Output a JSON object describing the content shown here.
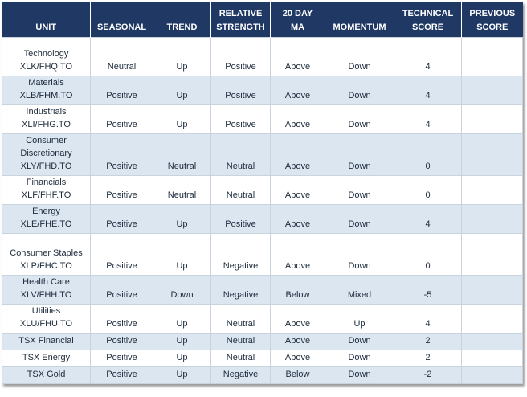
{
  "table": {
    "headers": [
      [
        "UNIT"
      ],
      [
        "SEASONAL"
      ],
      [
        "TREND"
      ],
      [
        "RELATIVE",
        "STRENGTH"
      ],
      [
        "20 DAY",
        "MA"
      ],
      [
        "MOMENTUM"
      ],
      [
        "TECHNICAL",
        "SCORE"
      ],
      [
        "PREVIOUS",
        "SCORE"
      ]
    ],
    "rows": [
      {
        "unit": [
          "Technology",
          "XLK/FHQ.TO"
        ],
        "seasonal": "Neutral",
        "trend": "Up",
        "relative_strength": "Positive",
        "ma_20_day": "Above",
        "momentum": "Down",
        "technical_score": 4
      },
      {
        "unit": [
          "Materials",
          "XLB/FHM.TO"
        ],
        "seasonal": "Positive",
        "trend": "Up",
        "relative_strength": "Positive",
        "ma_20_day": "Above",
        "momentum": "Down",
        "technical_score": 4
      },
      {
        "unit": [
          "Industrials",
          "XLI/FHG.TO"
        ],
        "seasonal": "Positive",
        "trend": "Up",
        "relative_strength": "Positive",
        "ma_20_day": "Above",
        "momentum": "Down",
        "technical_score": 4
      },
      {
        "unit": [
          "Consumer",
          "Discretionary",
          "XLY/FHD.TO"
        ],
        "seasonal": "Positive",
        "trend": "Neutral",
        "relative_strength": "Neutral",
        "ma_20_day": "Above",
        "momentum": "Down",
        "technical_score": 0
      },
      {
        "unit": [
          "Financials",
          "XLF/FHF.TO"
        ],
        "seasonal": "Positive",
        "trend": "Neutral",
        "relative_strength": "Neutral",
        "ma_20_day": "Above",
        "momentum": "Down",
        "technical_score": 0
      },
      {
        "unit": [
          "Energy",
          "XLE/FHE.TO"
        ],
        "seasonal": "Positive",
        "trend": "Up",
        "relative_strength": "Positive",
        "ma_20_day": "Above",
        "momentum": "Down",
        "technical_score": 4
      },
      {
        "unit": [
          "Consumer Staples",
          "XLP/FHC.TO"
        ],
        "seasonal": "Positive",
        "trend": "Up",
        "relative_strength": "Negative",
        "ma_20_day": "Above",
        "momentum": "Down",
        "technical_score": 0
      },
      {
        "unit": [
          "Health Care",
          "XLV/FHH.TO"
        ],
        "seasonal": "Positive",
        "trend": "Down",
        "relative_strength": "Negative",
        "ma_20_day": "Below",
        "momentum": "Mixed",
        "technical_score": -5
      },
      {
        "unit": [
          "Utilities",
          "XLU/FHU.TO"
        ],
        "seasonal": "Positive",
        "trend": "Up",
        "relative_strength": "Neutral",
        "ma_20_day": "Above",
        "momentum": "Up",
        "technical_score": 4
      },
      {
        "unit": [
          "TSX Financial"
        ],
        "seasonal": "Positive",
        "trend": "Up",
        "relative_strength": "Neutral",
        "ma_20_day": "Above",
        "momentum": "Down",
        "technical_score": 2
      },
      {
        "unit": [
          "TSX Energy"
        ],
        "seasonal": "Positive",
        "trend": "Up",
        "relative_strength": "Neutral",
        "ma_20_day": "Above",
        "momentum": "Down",
        "technical_score": 2
      },
      {
        "unit": [
          "TSX Gold"
        ],
        "seasonal": "Positive",
        "trend": "Up",
        "relative_strength": "Negative",
        "ma_20_day": "Below",
        "momentum": "Down",
        "technical_score": -2
      }
    ]
  }
}
